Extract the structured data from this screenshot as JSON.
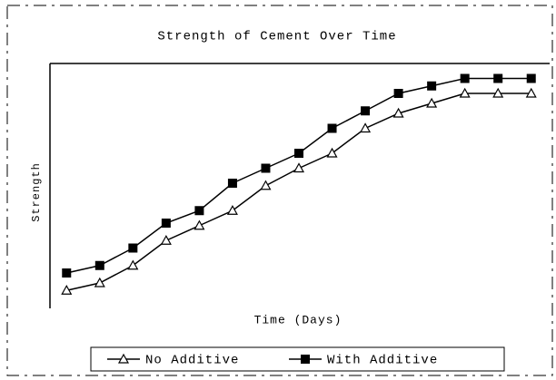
{
  "chart_data": {
    "type": "line",
    "title": "Strength of Cement Over Time",
    "x_label": "Time (Days)",
    "y_label": "Strength",
    "x": [
      1,
      2,
      3,
      4,
      5,
      6,
      7,
      8,
      9,
      10,
      11,
      12,
      13,
      14,
      15
    ],
    "xlim": [
      0.5,
      15.5
    ],
    "ylim": [
      0,
      100
    ],
    "series": [
      {
        "name": "No Additive",
        "color": "#000000",
        "marker": "open-triangle",
        "values": [
          9,
          12,
          19,
          29,
          35,
          41,
          51,
          58,
          64,
          74,
          80,
          84,
          88,
          88,
          88
        ]
      },
      {
        "name": "With Additive",
        "color": "#000000",
        "marker": "filled-square",
        "values": [
          16,
          19,
          26,
          36,
          41,
          52,
          58,
          64,
          74,
          81,
          88,
          91,
          94,
          94,
          94
        ]
      }
    ]
  }
}
